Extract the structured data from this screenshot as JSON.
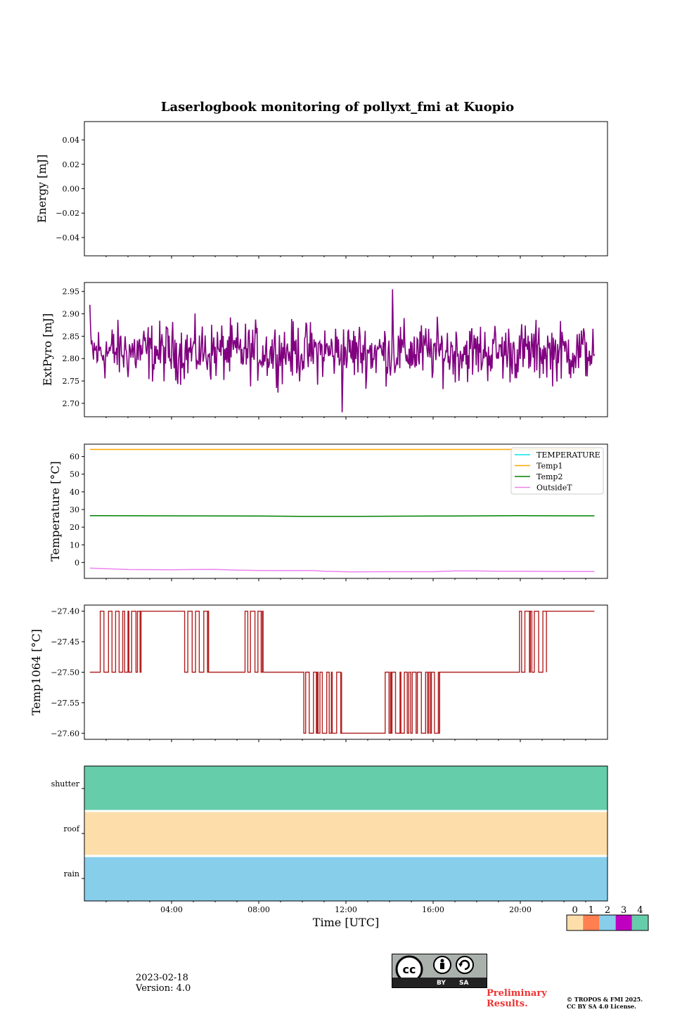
{
  "chart_data": [
    {
      "type": "line",
      "panel": "energy",
      "title": "Laserlogbook monitoring of pollyxt_fmi at Kuopio",
      "ylabel": "Energy [mJ]",
      "xlabel": "",
      "ylim": [
        -0.055,
        0.055
      ],
      "yticks": [
        0.04,
        0.02,
        0.0,
        -0.02,
        -0.04
      ],
      "ytick_labels": [
        "0.04",
        "0.02",
        "0.00",
        "−0.02",
        "−0.04"
      ],
      "series": []
    },
    {
      "type": "line",
      "panel": "extpyro",
      "ylabel": "ExtPyro [mJ]",
      "ylim": [
        2.67,
        2.97
      ],
      "yticks": [
        2.95,
        2.9,
        2.85,
        2.8,
        2.75,
        2.7
      ],
      "ytick_labels": [
        "2.95",
        "2.90",
        "2.85",
        "2.80",
        "2.75",
        "2.70"
      ],
      "series": [
        {
          "name": "ExtPyro",
          "color": "#800080",
          "x_start": 0.25,
          "x_end": 23.4,
          "mean": 2.815,
          "noise": 0.04,
          "min": 2.68,
          "max": 2.955
        }
      ]
    },
    {
      "type": "line",
      "panel": "temperature",
      "ylabel": "Temperature [°C]",
      "ylim": [
        -9,
        67
      ],
      "yticks": [
        60,
        50,
        40,
        30,
        20,
        10,
        0
      ],
      "ytick_labels": [
        "60",
        "50",
        "40",
        "30",
        "20",
        "10",
        "0"
      ],
      "legend_position": "top-right",
      "series": [
        {
          "name": "TEMPERATURE",
          "color": "#00e5ee",
          "x": [],
          "y": []
        },
        {
          "name": "Temp1",
          "color": "#ffa500",
          "x": [
            0.25,
            23.4
          ],
          "y": [
            64,
            64
          ]
        },
        {
          "name": "Temp2",
          "color": "#008000",
          "x": [
            0.25,
            4,
            8,
            10,
            12,
            16,
            20,
            23.4
          ],
          "y": [
            26.5,
            26.4,
            26.3,
            26.1,
            26.1,
            26.3,
            26.5,
            26.4
          ]
        },
        {
          "name": "OutsideT",
          "color": "#ee82ee",
          "x": [
            0.25,
            1,
            2,
            4,
            5,
            6,
            7,
            8,
            9,
            10.5,
            11,
            12.3,
            14,
            15,
            16,
            17,
            18,
            19,
            20,
            22,
            23.4
          ],
          "y": [
            -3.2,
            -3.5,
            -4.0,
            -4.1,
            -4.0,
            -3.9,
            -4.3,
            -4.5,
            -4.6,
            -4.6,
            -5.0,
            -5.3,
            -5.2,
            -5.2,
            -5.2,
            -4.8,
            -4.8,
            -5.0,
            -5.0,
            -5.1,
            -5.1
          ]
        }
      ]
    },
    {
      "type": "line",
      "panel": "temp1064",
      "ylabel": "Temp1064 [°C]",
      "ylim": [
        -27.61,
        -27.39
      ],
      "yticks": [
        -27.4,
        -27.45,
        -27.5,
        -27.55,
        -27.6
      ],
      "ytick_labels": [
        "−27.40",
        "−27.45",
        "−27.50",
        "−27.55",
        "−27.60"
      ],
      "series": [
        {
          "name": "Temp1064",
          "color": "#b22222",
          "x_start": 0.25,
          "x_end": 23.4,
          "levels": [
            -27.4,
            -27.5,
            -27.6
          ],
          "segments": [
            {
              "from": 0.25,
              "to": 0.6,
              "mode": "flat",
              "value": -27.5
            },
            {
              "from": 0.6,
              "to": 2.6,
              "mode": "toggle",
              "a": -27.5,
              "b": -27.4
            },
            {
              "from": 2.6,
              "to": 4.6,
              "mode": "flat",
              "value": -27.4
            },
            {
              "from": 4.6,
              "to": 5.7,
              "mode": "toggle",
              "a": -27.5,
              "b": -27.4
            },
            {
              "from": 5.7,
              "to": 6.1,
              "mode": "flat",
              "value": -27.5
            },
            {
              "from": 6.1,
              "to": 7.3,
              "mode": "flat",
              "value": -27.5
            },
            {
              "from": 7.3,
              "to": 8.2,
              "mode": "toggle",
              "a": -27.5,
              "b": -27.4
            },
            {
              "from": 8.2,
              "to": 10.0,
              "mode": "flat",
              "value": -27.5
            },
            {
              "from": 10.0,
              "to": 11.8,
              "mode": "toggle",
              "a": -27.5,
              "b": -27.6
            },
            {
              "from": 11.8,
              "to": 13.8,
              "mode": "flat",
              "value": -27.6
            },
            {
              "from": 13.8,
              "to": 16.3,
              "mode": "toggle",
              "a": -27.5,
              "b": -27.6
            },
            {
              "from": 16.3,
              "to": 19.8,
              "mode": "flat",
              "value": -27.5
            },
            {
              "from": 19.8,
              "to": 21.2,
              "mode": "toggle",
              "a": -27.5,
              "b": -27.4
            },
            {
              "from": 21.2,
              "to": 23.4,
              "mode": "flat",
              "value": -27.4
            }
          ]
        }
      ]
    },
    {
      "type": "heatmap",
      "panel": "status",
      "rows": [
        "shutter",
        "roof",
        "rain"
      ],
      "row_values": [
        4,
        0,
        2
      ],
      "xlabel": "Time [UTC]",
      "xlim": [
        0,
        24
      ],
      "xticks": [
        4,
        8,
        12,
        16,
        20
      ],
      "xtick_labels": [
        "04:00",
        "08:00",
        "12:00",
        "16:00",
        "20:00"
      ],
      "colorbar": {
        "levels": [
          0,
          1,
          2,
          3,
          4
        ],
        "labels": [
          "0",
          "1",
          "2",
          "3",
          "4"
        ],
        "colors": [
          "#fddeaa",
          "#ff7f50",
          "#87ceeb",
          "#c000c0",
          "#66cdaa"
        ]
      }
    }
  ],
  "footer": {
    "date": "2023-02-18",
    "version": "Version: 4.0",
    "preliminary": [
      "Preliminary",
      "Results."
    ],
    "copyright": [
      "© TROPOS & FMI 2025.",
      "CC BY SA 4.0 License."
    ],
    "license_badge": {
      "by": "BY",
      "sa": "SA"
    }
  }
}
